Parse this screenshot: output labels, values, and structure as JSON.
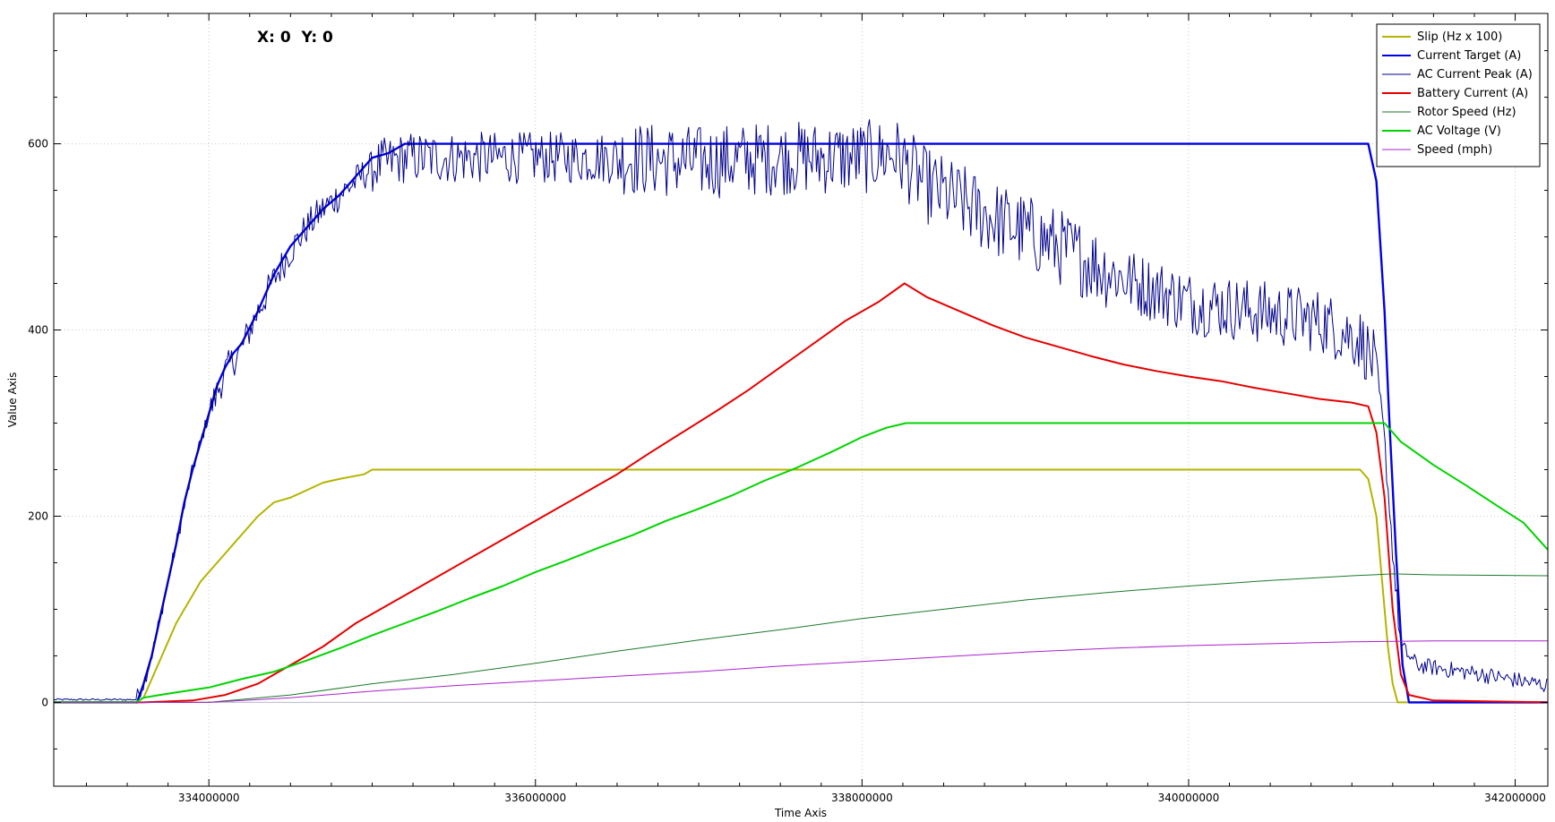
{
  "readout": {
    "text": "X: 0  Y: 0"
  },
  "chart_data": {
    "type": "line",
    "xlabel": "Time Axis",
    "ylabel": "Value Axis",
    "xlim": [
      333050000,
      342200000
    ],
    "ylim": [
      -90,
      740
    ],
    "grid": true,
    "legend_position": "top-right",
    "x_ticks": [
      334000000,
      336000000,
      338000000,
      340000000,
      342000000
    ],
    "y_ticks": [
      0,
      200,
      400,
      600
    ],
    "series": [
      {
        "name": "Slip (Hz x 100)",
        "color": "#b4b400",
        "width": 2,
        "points": [
          [
            333050000,
            0
          ],
          [
            333550000,
            0
          ],
          [
            333600000,
            5
          ],
          [
            333650000,
            25
          ],
          [
            333700000,
            45
          ],
          [
            333750000,
            65
          ],
          [
            333800000,
            85
          ],
          [
            333850000,
            100
          ],
          [
            333900000,
            115
          ],
          [
            333950000,
            130
          ],
          [
            334000000,
            140
          ],
          [
            334100000,
            160
          ],
          [
            334200000,
            180
          ],
          [
            334300000,
            200
          ],
          [
            334400000,
            215
          ],
          [
            334500000,
            220
          ],
          [
            334600000,
            228
          ],
          [
            334700000,
            236
          ],
          [
            334800000,
            240
          ],
          [
            334950000,
            245
          ],
          [
            335000000,
            250
          ],
          [
            341050000,
            250
          ],
          [
            341100000,
            240
          ],
          [
            341150000,
            200
          ],
          [
            341180000,
            140
          ],
          [
            341220000,
            60
          ],
          [
            341250000,
            20
          ],
          [
            341280000,
            0
          ],
          [
            342200000,
            0
          ]
        ]
      },
      {
        "name": "Current Target (A)",
        "color": "#0000e6",
        "width": 2.4,
        "points": [
          [
            333050000,
            0
          ],
          [
            333560000,
            0
          ],
          [
            333600000,
            20
          ],
          [
            333650000,
            50
          ],
          [
            333700000,
            90
          ],
          [
            333750000,
            130
          ],
          [
            333800000,
            170
          ],
          [
            333850000,
            215
          ],
          [
            333900000,
            250
          ],
          [
            333950000,
            280
          ],
          [
            334000000,
            310
          ],
          [
            334050000,
            340
          ],
          [
            334100000,
            360
          ],
          [
            334150000,
            375
          ],
          [
            334200000,
            385
          ],
          [
            334300000,
            420
          ],
          [
            334400000,
            460
          ],
          [
            334500000,
            490
          ],
          [
            334600000,
            510
          ],
          [
            334700000,
            530
          ],
          [
            334800000,
            545
          ],
          [
            334900000,
            565
          ],
          [
            335000000,
            585
          ],
          [
            335100000,
            590
          ],
          [
            335200000,
            600
          ],
          [
            341100000,
            600
          ],
          [
            341150000,
            560
          ],
          [
            341200000,
            420
          ],
          [
            341230000,
            300
          ],
          [
            341270000,
            160
          ],
          [
            341310000,
            40
          ],
          [
            341350000,
            0
          ],
          [
            342200000,
            0
          ]
        ]
      },
      {
        "name": "AC Current Peak (A)",
        "color": "#00008b",
        "width": 1,
        "noisy": true,
        "points": [
          [
            333050000,
            3
          ],
          [
            333550000,
            3
          ],
          [
            333600000,
            20
          ],
          [
            333650000,
            50
          ],
          [
            333700000,
            90
          ],
          [
            333750000,
            130
          ],
          [
            333800000,
            170
          ],
          [
            333850000,
            210
          ],
          [
            333900000,
            250
          ],
          [
            333950000,
            280
          ],
          [
            334000000,
            310
          ],
          [
            334100000,
            355
          ],
          [
            334200000,
            380
          ],
          [
            334300000,
            420
          ],
          [
            334400000,
            455
          ],
          [
            334500000,
            485
          ],
          [
            334600000,
            510
          ],
          [
            334700000,
            530
          ],
          [
            334800000,
            545
          ],
          [
            334900000,
            560
          ],
          [
            335000000,
            575
          ],
          [
            335200000,
            585
          ],
          [
            335500000,
            585
          ],
          [
            336000000,
            585
          ],
          [
            336500000,
            585
          ],
          [
            337000000,
            580
          ],
          [
            337500000,
            585
          ],
          [
            338000000,
            585
          ],
          [
            338200000,
            590
          ],
          [
            338400000,
            555
          ],
          [
            338800000,
            520
          ],
          [
            339200000,
            490
          ],
          [
            339600000,
            455
          ],
          [
            340000000,
            430
          ],
          [
            340400000,
            420
          ],
          [
            340800000,
            410
          ],
          [
            341050000,
            390
          ],
          [
            341150000,
            360
          ],
          [
            341200000,
            280
          ],
          [
            341260000,
            140
          ],
          [
            341300000,
            60
          ],
          [
            341400000,
            40
          ],
          [
            341800000,
            30
          ],
          [
            342200000,
            18
          ]
        ]
      },
      {
        "name": "Battery Current (A)",
        "color": "#e60000",
        "width": 2,
        "points": [
          [
            333050000,
            0
          ],
          [
            333600000,
            0
          ],
          [
            333900000,
            2
          ],
          [
            334100000,
            8
          ],
          [
            334300000,
            20
          ],
          [
            334500000,
            40
          ],
          [
            334700000,
            60
          ],
          [
            334900000,
            85
          ],
          [
            335100000,
            105
          ],
          [
            335300000,
            125
          ],
          [
            335500000,
            145
          ],
          [
            335700000,
            165
          ],
          [
            335900000,
            185
          ],
          [
            336100000,
            205
          ],
          [
            336300000,
            225
          ],
          [
            336500000,
            245
          ],
          [
            336700000,
            268
          ],
          [
            336900000,
            290
          ],
          [
            337100000,
            312
          ],
          [
            337300000,
            335
          ],
          [
            337500000,
            360
          ],
          [
            337700000,
            385
          ],
          [
            337900000,
            410
          ],
          [
            338100000,
            430
          ],
          [
            338260000,
            450
          ],
          [
            338400000,
            435
          ],
          [
            338600000,
            420
          ],
          [
            338800000,
            405
          ],
          [
            339000000,
            392
          ],
          [
            339200000,
            382
          ],
          [
            339400000,
            372
          ],
          [
            339600000,
            363
          ],
          [
            339800000,
            356
          ],
          [
            340000000,
            350
          ],
          [
            340200000,
            345
          ],
          [
            340400000,
            338
          ],
          [
            340600000,
            332
          ],
          [
            340800000,
            326
          ],
          [
            341000000,
            322
          ],
          [
            341100000,
            318
          ],
          [
            341150000,
            290
          ],
          [
            341200000,
            220
          ],
          [
            341250000,
            100
          ],
          [
            341300000,
            30
          ],
          [
            341350000,
            8
          ],
          [
            341500000,
            2
          ],
          [
            342200000,
            0
          ]
        ]
      },
      {
        "name": "Rotor Speed (Hz)",
        "color": "#1a7a2a",
        "width": 1,
        "points": [
          [
            333050000,
            0
          ],
          [
            334000000,
            0
          ],
          [
            334500000,
            8
          ],
          [
            335000000,
            20
          ],
          [
            335500000,
            30
          ],
          [
            336000000,
            42
          ],
          [
            336500000,
            55
          ],
          [
            337000000,
            67
          ],
          [
            337500000,
            78
          ],
          [
            338000000,
            90
          ],
          [
            338500000,
            100
          ],
          [
            339000000,
            110
          ],
          [
            339500000,
            118
          ],
          [
            340000000,
            125
          ],
          [
            340500000,
            131
          ],
          [
            341000000,
            136
          ],
          [
            341250000,
            138
          ],
          [
            341500000,
            137
          ],
          [
            342200000,
            136
          ]
        ]
      },
      {
        "name": "AC Voltage (V)",
        "color": "#00d400",
        "width": 2,
        "points": [
          [
            333050000,
            0
          ],
          [
            333550000,
            0
          ],
          [
            333600000,
            5
          ],
          [
            333700000,
            8
          ],
          [
            333850000,
            12
          ],
          [
            334000000,
            16
          ],
          [
            334200000,
            25
          ],
          [
            334400000,
            33
          ],
          [
            334600000,
            45
          ],
          [
            334800000,
            58
          ],
          [
            335000000,
            72
          ],
          [
            335200000,
            85
          ],
          [
            335400000,
            98
          ],
          [
            335600000,
            112
          ],
          [
            335800000,
            125
          ],
          [
            336000000,
            140
          ],
          [
            336200000,
            153
          ],
          [
            336400000,
            167
          ],
          [
            336600000,
            180
          ],
          [
            336800000,
            195
          ],
          [
            337000000,
            208
          ],
          [
            337200000,
            222
          ],
          [
            337400000,
            238
          ],
          [
            337600000,
            252
          ],
          [
            337800000,
            268
          ],
          [
            338000000,
            285
          ],
          [
            338150000,
            295
          ],
          [
            338270000,
            300
          ],
          [
            341200000,
            300
          ],
          [
            341300000,
            280
          ],
          [
            341500000,
            255
          ],
          [
            341700000,
            233
          ],
          [
            341900000,
            210
          ],
          [
            342050000,
            193
          ],
          [
            342200000,
            164
          ]
        ]
      },
      {
        "name": "Speed (mph)",
        "color": "#aa22cc",
        "width": 1,
        "points": [
          [
            333050000,
            0
          ],
          [
            334000000,
            0
          ],
          [
            334500000,
            5
          ],
          [
            335000000,
            12
          ],
          [
            335500000,
            18
          ],
          [
            336000000,
            23
          ],
          [
            336500000,
            28
          ],
          [
            337000000,
            33
          ],
          [
            337500000,
            39
          ],
          [
            338000000,
            44
          ],
          [
            338500000,
            49
          ],
          [
            339000000,
            54
          ],
          [
            339500000,
            58
          ],
          [
            340000000,
            61
          ],
          [
            340500000,
            63
          ],
          [
            341000000,
            65
          ],
          [
            341500000,
            66
          ],
          [
            342200000,
            66
          ]
        ]
      }
    ]
  }
}
